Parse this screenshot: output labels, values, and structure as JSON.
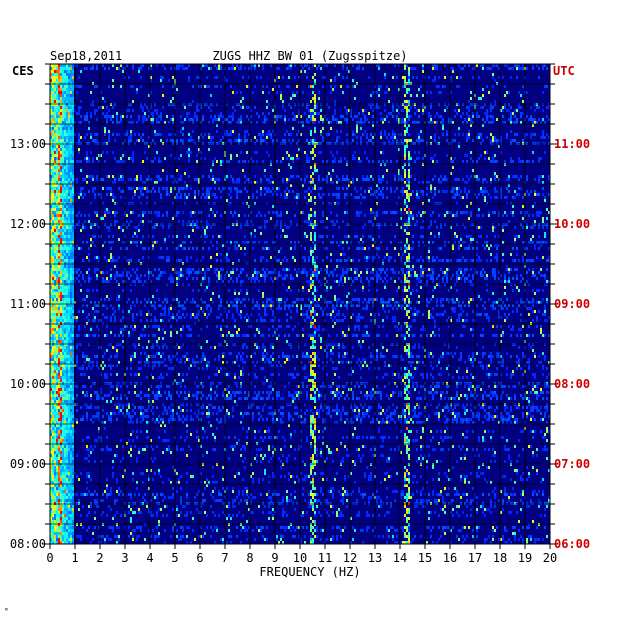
{
  "header": {
    "date": "Sep18,2011",
    "station": "ZUGS HHZ BW 01 (Zugsspitze)"
  },
  "left_axis": {
    "zone": "CES",
    "color": "#000000"
  },
  "right_axis": {
    "zone": "UTC",
    "color": "#cc0000"
  },
  "footer": {
    "mark": "°"
  },
  "chart_data": {
    "type": "heatmap",
    "title": "ZUGS HHZ BW 01 (Zugsspitze)",
    "date": "Sep18,2011",
    "xlabel": "FREQUENCY (HZ)",
    "xlim": [
      0,
      20
    ],
    "x_ticks": [
      "0",
      "1",
      "2",
      "3",
      "4",
      "5",
      "6",
      "7",
      "8",
      "9",
      "10",
      "11",
      "12",
      "13",
      "14",
      "15",
      "16",
      "17",
      "18",
      "19",
      "20"
    ],
    "y_ticks_left": [
      "13:00",
      "12:00",
      "11:00",
      "10:00",
      "09:00",
      "08:00"
    ],
    "y_ticks_right": [
      "11:00",
      "10:00",
      "09:00",
      "08:00",
      "07:00",
      "06:00"
    ],
    "left_time_zone": "CES",
    "right_time_zone": "UTC",
    "time_range_ces": [
      "08:00",
      "14:00"
    ],
    "colormap": [
      "#000080",
      "#0000ff",
      "#00ffff",
      "#ffff00",
      "#ff0000"
    ],
    "grid": true,
    "prominent_lines_hz": [
      0.4,
      10.5,
      14.3
    ]
  }
}
